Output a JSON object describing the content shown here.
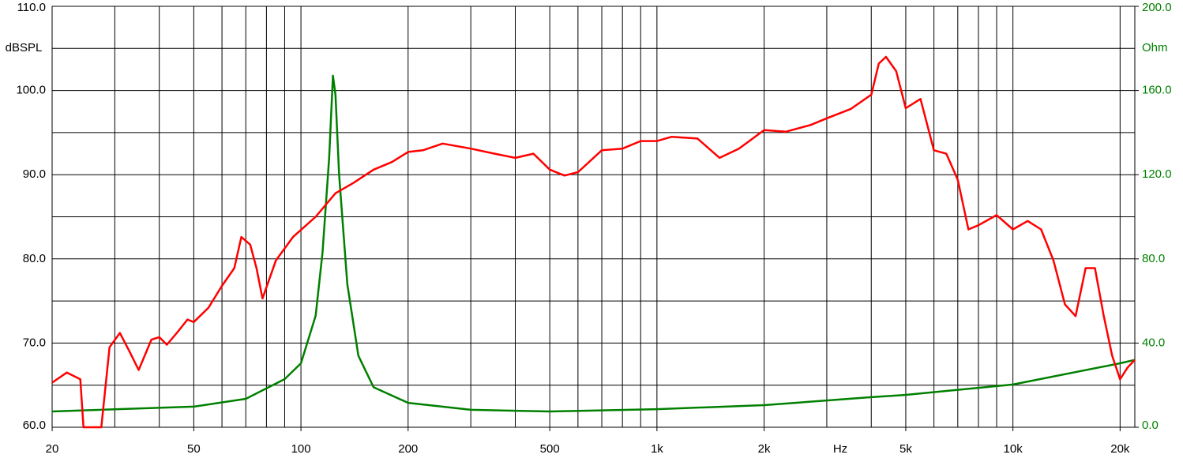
{
  "chart_data": {
    "type": "line",
    "log_x": true,
    "grid": true,
    "x_label": "Hz",
    "y_label": "dBSPL",
    "y2_label": "Ohm",
    "xlim": [
      20,
      22000
    ],
    "ylim": [
      60,
      110
    ],
    "y2lim": [
      0,
      200
    ],
    "xticks": [
      20,
      50,
      100,
      200,
      500,
      {
        "value": 1000,
        "label": "1k"
      },
      {
        "value": 2000,
        "label": "2k"
      },
      {
        "value": 5000,
        "label": "5k"
      },
      {
        "value": 10000,
        "label": "10k"
      },
      {
        "value": 20000,
        "label": "20k"
      }
    ],
    "xgrid": [
      20,
      30,
      40,
      50,
      60,
      70,
      80,
      90,
      100,
      200,
      300,
      400,
      500,
      600,
      700,
      800,
      900,
      1000,
      2000,
      3000,
      4000,
      5000,
      6000,
      7000,
      8000,
      9000,
      10000,
      20000
    ],
    "yticks": [
      {
        "value": 60,
        "label": "60.0"
      },
      {
        "value": 70,
        "label": "70.0"
      },
      {
        "value": 80,
        "label": "80.0"
      },
      {
        "value": 90,
        "label": "90.0"
      },
      {
        "value": 100,
        "label": "100.0"
      },
      {
        "value": 110,
        "label": "110.0"
      }
    ],
    "ygrid": [
      65,
      75,
      85,
      95,
      105
    ],
    "y2ticks": [
      {
        "value": 0,
        "label": "0.0"
      },
      {
        "value": 40,
        "label": "40.0"
      },
      {
        "value": 80,
        "label": "80.0"
      },
      {
        "value": 120,
        "label": "120.0"
      },
      {
        "value": 160,
        "label": "160.0"
      },
      {
        "value": 200,
        "label": "200.0"
      }
    ],
    "series": [
      {
        "color": "#ff0000",
        "x": [
          20,
          22,
          24,
          24.5,
          27.5,
          29,
          31,
          33,
          35,
          38,
          40,
          42,
          45,
          48,
          50,
          55,
          60,
          65,
          68,
          72,
          75,
          78,
          85,
          95,
          110,
          125,
          140,
          160,
          180,
          200,
          220,
          250,
          300,
          350,
          400,
          450,
          500,
          550,
          600,
          700,
          800,
          900,
          1000,
          1100,
          1300,
          1500,
          1700,
          2000,
          2300,
          2700,
          3000,
          3500,
          4000,
          4200,
          4400,
          4700,
          5000,
          5500,
          6000,
          6500,
          7000,
          7500,
          8000,
          9000,
          10000,
          11000,
          12000,
          13000,
          14000,
          15000,
          16000,
          17000,
          18000,
          19000,
          20000,
          21000,
          22000
        ],
        "values": [
          65.3,
          66.5,
          65.7,
          60,
          60,
          69.5,
          71.2,
          69,
          66.8,
          70.4,
          70.7,
          69.8,
          71.3,
          72.8,
          72.5,
          74.2,
          76.8,
          78.9,
          82.6,
          81.7,
          78.9,
          75.3,
          79.8,
          82.6,
          85,
          87.8,
          89,
          90.6,
          91.5,
          92.7,
          92.9,
          93.7,
          93.1,
          92.5,
          92,
          92.5,
          90.6,
          89.9,
          90.3,
          92.9,
          93.1,
          94,
          94,
          94.5,
          94.3,
          92,
          93.1,
          95.3,
          95.1,
          95.9,
          96.7,
          97.8,
          99.5,
          103.2,
          104,
          102.3,
          97.9,
          99,
          92.9,
          92.5,
          89.4,
          83.5,
          84,
          85.2,
          83.5,
          84.5,
          83.5,
          79.8,
          74.6,
          73.2,
          78.9,
          78.9,
          73.2,
          68.5,
          65.7,
          67.1,
          68
        ]
      },
      {
        "color": "#008000",
        "axis": "y2",
        "x": [
          20,
          50,
          70,
          90,
          100,
          110,
          115,
          120,
          123,
          125,
          128,
          135,
          145,
          160,
          200,
          300,
          500,
          1000,
          2000,
          4000,
          5000,
          10000,
          20000,
          22000
        ],
        "values": [
          7.5,
          9.8,
          13.5,
          22.9,
          30.4,
          53,
          83,
          128,
          167,
          158,
          120,
          68,
          34,
          19,
          11.6,
          8.3,
          7.5,
          8.6,
          10.5,
          14.3,
          15.4,
          20.3,
          30.4,
          32
        ]
      }
    ]
  }
}
